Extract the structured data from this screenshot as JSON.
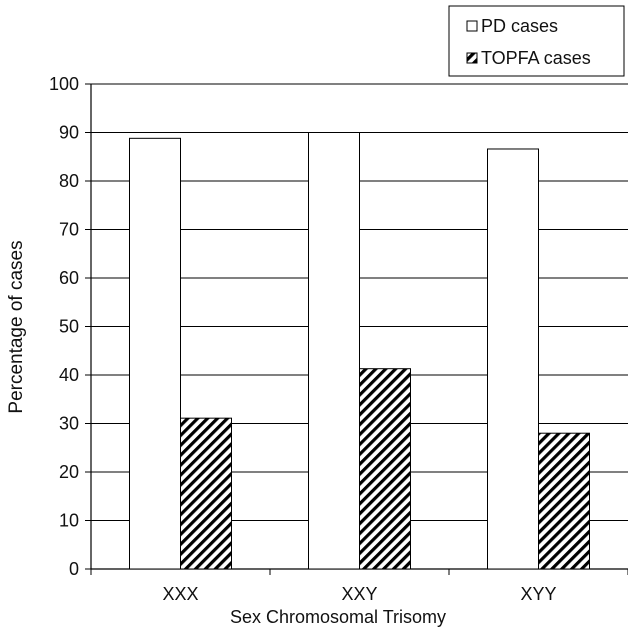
{
  "chart_data": {
    "type": "bar",
    "title": "",
    "xlabel": "Sex Chromosomal Trisomy",
    "ylabel": "Percentage of cases",
    "categories": [
      "XXX",
      "XXY",
      "XYY"
    ],
    "series": [
      {
        "name": "PD cases",
        "values": [
          88.8,
          90.0,
          86.6
        ],
        "fill": "#ffffff",
        "pattern": "none"
      },
      {
        "name": "TOPFA cases",
        "values": [
          31.1,
          41.3,
          28.0
        ],
        "fill": "#ffffff",
        "pattern": "diagonal-hatch"
      }
    ],
    "ylim": [
      0,
      100
    ],
    "yticks": [
      "0",
      "10",
      "20",
      "30",
      "40",
      "50",
      "60",
      "70",
      "80",
      "90",
      "100"
    ],
    "grid": true,
    "legend_position": "top-right",
    "colors": {
      "bar_stroke": "#000000",
      "hatch": "#000000",
      "grid": "#000000",
      "text": "#111111"
    }
  }
}
